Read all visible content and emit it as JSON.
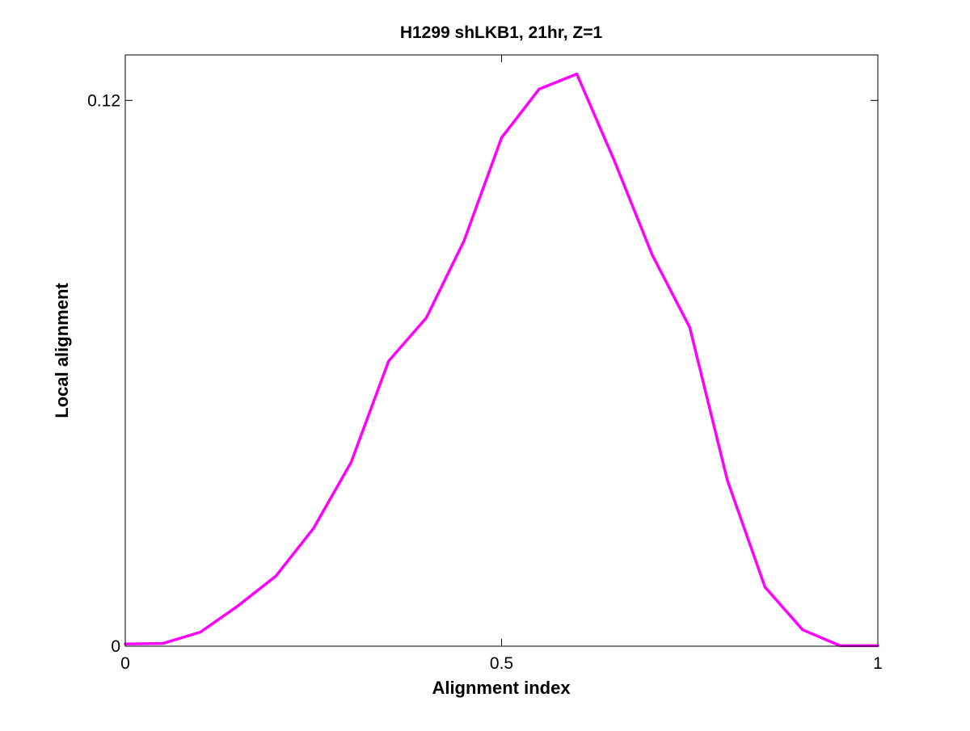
{
  "chart_data": {
    "type": "line",
    "title": "H1299 shLKB1, 21hr, Z=1",
    "xlabel": "Alignment index",
    "ylabel": "Local alignment",
    "xlim": [
      0,
      1
    ],
    "ylim": [
      0,
      0.13
    ],
    "x_ticks": [
      {
        "value": 0,
        "label": "0"
      },
      {
        "value": 0.5,
        "label": "0.5"
      },
      {
        "value": 1,
        "label": "1"
      }
    ],
    "y_ticks": [
      {
        "value": 0,
        "label": "0"
      },
      {
        "value": 0.12,
        "label": "0.12"
      }
    ],
    "grid": false,
    "legend": "none",
    "series": [
      {
        "color": "#ff00ff",
        "x": [
          0,
          0.05,
          0.1,
          0.15,
          0.2,
          0.25,
          0.3,
          0.35,
          0.4,
          0.45,
          0.5,
          0.55,
          0.6,
          0.65,
          0.7,
          0.75,
          0.8,
          0.85,
          0.9,
          0.95,
          1.0
        ],
        "y": [
          0.0005,
          0.0006,
          0.0031,
          0.0089,
          0.0154,
          0.0259,
          0.0404,
          0.0627,
          0.0722,
          0.0891,
          0.1118,
          0.1225,
          0.1258,
          0.1067,
          0.0861,
          0.0701,
          0.0365,
          0.013,
          0.0036,
          0.0001,
          0.0001
        ]
      }
    ]
  }
}
